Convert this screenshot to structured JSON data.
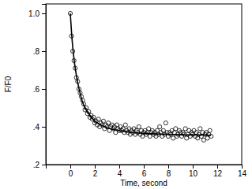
{
  "chart_data": {
    "type": "scatter",
    "xlabel": "Time, second",
    "ylabel": "F/F0",
    "xlim": [
      -2,
      14
    ],
    "xticks": [
      0,
      2,
      4,
      6,
      8,
      10,
      12,
      14
    ],
    "ylim": [
      0.2,
      1.05
    ],
    "yticks": [
      {
        "value": 0.2,
        "label": ".2"
      },
      {
        "value": 0.4,
        "label": ".4"
      },
      {
        "value": 0.6,
        "label": ".6"
      },
      {
        "value": 0.8,
        "label": ".8"
      },
      {
        "value": 1.0,
        "label": "1.0"
      }
    ],
    "grid": false,
    "series": [
      {
        "type": "scatter",
        "marker": "circle",
        "color": "#000000",
        "x": [
          0.0,
          0.1,
          0.2,
          0.3,
          0.4,
          0.5,
          0.6,
          0.7,
          0.8,
          0.9,
          1.0,
          1.1,
          1.2,
          1.3,
          1.4,
          1.5,
          1.6,
          1.7,
          1.8,
          1.9,
          2.0,
          2.1,
          2.2,
          2.3,
          2.4,
          2.5,
          2.6,
          2.7,
          2.8,
          2.9,
          3.0,
          3.1,
          3.2,
          3.3,
          3.4,
          3.5,
          3.6,
          3.7,
          3.8,
          3.9,
          4.0,
          4.1,
          4.2,
          4.3,
          4.4,
          4.5,
          4.6,
          4.7,
          4.8,
          4.9,
          5.0,
          5.1,
          5.2,
          5.3,
          5.4,
          5.5,
          5.6,
          5.7,
          5.8,
          5.9,
          6.0,
          6.1,
          6.2,
          6.3,
          6.4,
          6.5,
          6.6,
          6.7,
          6.8,
          6.9,
          7.0,
          7.1,
          7.2,
          7.3,
          7.4,
          7.5,
          7.6,
          7.7,
          7.8,
          7.9,
          8.0,
          8.1,
          8.2,
          8.3,
          8.4,
          8.5,
          8.6,
          8.7,
          8.8,
          8.9,
          9.0,
          9.1,
          9.2,
          9.3,
          9.4,
          9.5,
          9.6,
          9.7,
          9.8,
          9.9,
          10.0,
          10.1,
          10.2,
          10.3,
          10.4,
          10.5,
          10.6,
          10.7,
          10.8,
          10.9,
          11.0,
          11.1,
          11.2,
          11.3,
          11.4,
          11.5
        ],
        "values": [
          1.0,
          0.88,
          0.8,
          0.75,
          0.71,
          0.66,
          0.64,
          0.6,
          0.58,
          0.56,
          0.54,
          0.52,
          0.49,
          0.5,
          0.47,
          0.48,
          0.45,
          0.46,
          0.44,
          0.45,
          0.42,
          0.43,
          0.41,
          0.44,
          0.4,
          0.42,
          0.41,
          0.43,
          0.39,
          0.41,
          0.4,
          0.42,
          0.38,
          0.4,
          0.41,
          0.39,
          0.4,
          0.37,
          0.41,
          0.39,
          0.38,
          0.4,
          0.38,
          0.39,
          0.37,
          0.41,
          0.38,
          0.37,
          0.39,
          0.36,
          0.38,
          0.37,
          0.39,
          0.36,
          0.38,
          0.37,
          0.4,
          0.36,
          0.38,
          0.35,
          0.37,
          0.38,
          0.36,
          0.37,
          0.39,
          0.35,
          0.37,
          0.38,
          0.36,
          0.37,
          0.35,
          0.38,
          0.36,
          0.4,
          0.37,
          0.35,
          0.38,
          0.36,
          0.42,
          0.37,
          0.35,
          0.37,
          0.36,
          0.38,
          0.34,
          0.37,
          0.39,
          0.35,
          0.36,
          0.38,
          0.37,
          0.35,
          0.37,
          0.36,
          0.39,
          0.34,
          0.36,
          0.38,
          0.35,
          0.37,
          0.36,
          0.38,
          0.35,
          0.37,
          0.34,
          0.36,
          0.39,
          0.35,
          0.37,
          0.33,
          0.36,
          0.37,
          0.34,
          0.36,
          0.38,
          0.35
        ]
      },
      {
        "type": "line",
        "line_style": "solid",
        "color": "#000000",
        "x": [
          0,
          0.1,
          0.2,
          0.3,
          0.5,
          0.75,
          1,
          1.5,
          2,
          2.5,
          3,
          4,
          5,
          6,
          7,
          8,
          9,
          10,
          11,
          11.5
        ],
        "values": [
          1.0,
          0.9,
          0.82,
          0.76,
          0.67,
          0.59,
          0.53,
          0.47,
          0.43,
          0.41,
          0.395,
          0.38,
          0.37,
          0.365,
          0.362,
          0.36,
          0.358,
          0.357,
          0.356,
          0.355
        ]
      }
    ]
  }
}
